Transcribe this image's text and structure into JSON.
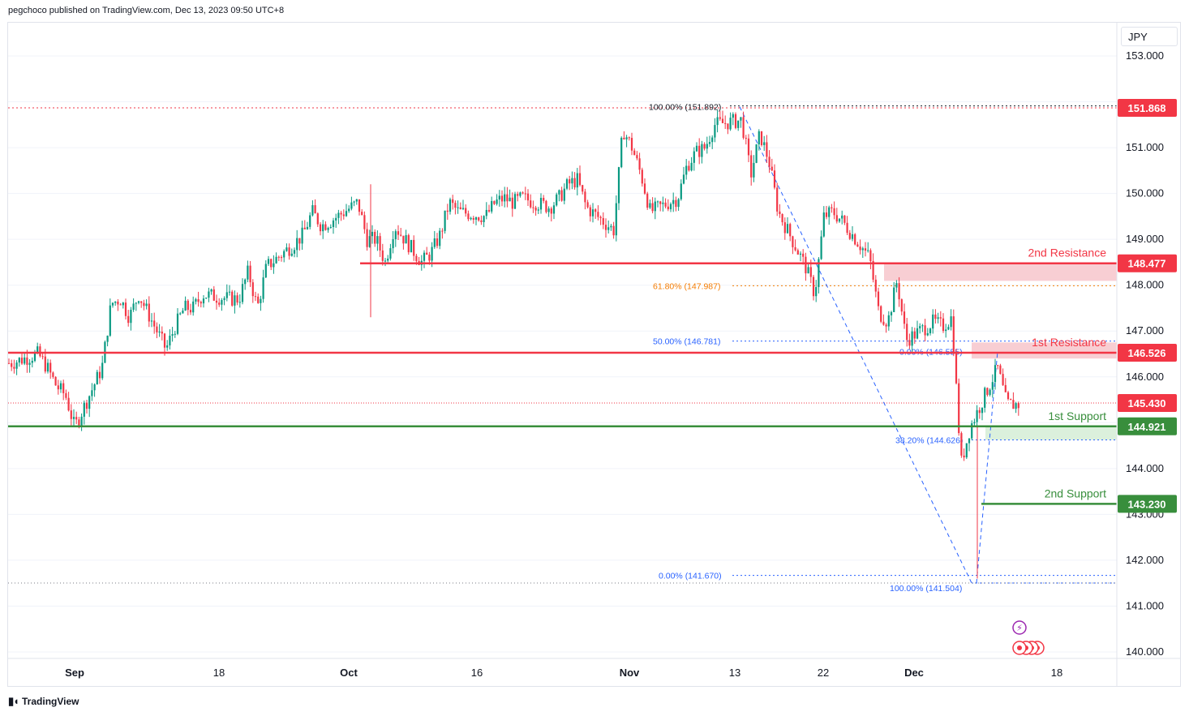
{
  "header": {
    "text": "pegchoco published on TradingView.com, Dec 13, 2023 09:50 UTC+8"
  },
  "footer": {
    "brand": "TradingView",
    "logo_icon": "tradingview-logo-icon"
  },
  "price_axis": {
    "currency": "JPY"
  },
  "colors": {
    "up": "#089981",
    "down": "#f23645",
    "resistance": "#f23645",
    "support": "#388e3c",
    "fib_blue": "#2962ff",
    "fib_orange": "#f57c00",
    "zone_red": "#f7c5cb",
    "zone_green": "#d7eed8"
  },
  "chart_data": {
    "type": "candlestick",
    "symbol_currency": "JPY",
    "ylim": [
      139.9,
      153.6
    ],
    "y_ticks": [
      140.0,
      141.0,
      142.0,
      143.0,
      144.0,
      145.0,
      146.0,
      147.0,
      148.0,
      149.0,
      150.0,
      151.0,
      152.0,
      153.0
    ],
    "y_tick_labels": [
      "140.000",
      "141.000",
      "142.000",
      "143.000",
      "144.000",
      "",
      "146.000",
      "147.000",
      "148.000",
      "149.000",
      "150.000",
      "151.000",
      "",
      "153.000"
    ],
    "x_ticks": [
      {
        "label": "Sep",
        "bold": true
      },
      {
        "label": "18",
        "bold": false
      },
      {
        "label": "Oct",
        "bold": true
      },
      {
        "label": "16",
        "bold": false
      },
      {
        "label": "Nov",
        "bold": true
      },
      {
        "label": "13",
        "bold": false
      },
      {
        "label": "22",
        "bold": false
      },
      {
        "label": "Dec",
        "bold": true
      },
      {
        "label": "18",
        "bold": false
      }
    ],
    "levels": [
      {
        "name": "2nd Resistance",
        "price": 148.477,
        "label": "148.477",
        "kind": "resistance"
      },
      {
        "name": "1st Resistance",
        "price": 146.526,
        "label": "146.526",
        "kind": "resistance"
      },
      {
        "name": "1st Support",
        "price": 144.921,
        "label": "144.921",
        "kind": "support"
      },
      {
        "name": "2nd Support",
        "price": 143.23,
        "label": "143.230",
        "kind": "support"
      }
    ],
    "price_badges": [
      {
        "price": 151.868,
        "label": "151.868"
      },
      {
        "price": 145.43,
        "label": "145.430"
      }
    ],
    "fib_labels": [
      {
        "text": "100.00% (151.892)",
        "price": 151.892,
        "color": "dark"
      },
      {
        "text": "61.80% (147.987)",
        "price": 147.987,
        "color": "orange"
      },
      {
        "text": "50.00% (146.781)",
        "price": 146.781,
        "color": "blue"
      },
      {
        "text": "0.00% (146.555)",
        "price": 146.555,
        "color": "blue"
      },
      {
        "text": "38.20% (144.626)",
        "price": 144.626,
        "color": "blue"
      },
      {
        "text": "0.00% (141.670)",
        "price": 141.67,
        "color": "blue"
      },
      {
        "text": "100.00% (141.504)",
        "price": 141.504,
        "color": "blue"
      }
    ],
    "price_path": [
      [
        "2023-08-25",
        146.3
      ],
      [
        "2023-08-28",
        146.5
      ],
      [
        "2023-08-29",
        146.2
      ],
      [
        "2023-08-30",
        145.8
      ],
      [
        "2023-08-31",
        145.6
      ],
      [
        "2023-09-01",
        144.9
      ],
      [
        "2023-09-04",
        146.2
      ],
      [
        "2023-09-05",
        147.6
      ],
      [
        "2023-09-06",
        147.7
      ],
      [
        "2023-09-07",
        147.3
      ],
      [
        "2023-09-08",
        147.8
      ],
      [
        "2023-09-11",
        146.6
      ],
      [
        "2023-09-12",
        147.1
      ],
      [
        "2023-09-13",
        147.5
      ],
      [
        "2023-09-14",
        147.5
      ],
      [
        "2023-09-15",
        147.8
      ],
      [
        "2023-09-18",
        147.7
      ],
      [
        "2023-09-19",
        147.7
      ],
      [
        "2023-09-20",
        148.3
      ],
      [
        "2023-09-21",
        147.5
      ],
      [
        "2023-09-22",
        148.4
      ],
      [
        "2023-09-25",
        148.9
      ],
      [
        "2023-09-26",
        149.1
      ],
      [
        "2023-09-27",
        149.6
      ],
      [
        "2023-09-28",
        149.3
      ],
      [
        "2023-09-29",
        149.4
      ],
      [
        "2023-10-02",
        149.8
      ],
      [
        "2023-10-03",
        149.0
      ],
      [
        "2023-10-04",
        149.0
      ],
      [
        "2023-10-05",
        148.5
      ],
      [
        "2023-10-06",
        149.3
      ],
      [
        "2023-10-09",
        148.5
      ],
      [
        "2023-10-10",
        148.7
      ],
      [
        "2023-10-11",
        149.1
      ],
      [
        "2023-10-12",
        149.8
      ],
      [
        "2023-10-13",
        149.6
      ],
      [
        "2023-10-16",
        149.5
      ],
      [
        "2023-10-17",
        149.8
      ],
      [
        "2023-10-18",
        149.9
      ],
      [
        "2023-10-19",
        149.8
      ],
      [
        "2023-10-20",
        149.9
      ],
      [
        "2023-10-23",
        149.7
      ],
      [
        "2023-10-24",
        149.9
      ],
      [
        "2023-10-25",
        150.2
      ],
      [
        "2023-10-26",
        150.3
      ],
      [
        "2023-10-27",
        149.7
      ],
      [
        "2023-10-30",
        149.2
      ],
      [
        "2023-10-31",
        151.4
      ],
      [
        "2023-11-01",
        151.0
      ],
      [
        "2023-11-02",
        150.4
      ],
      [
        "2023-11-03",
        149.6
      ],
      [
        "2023-11-06",
        149.9
      ],
      [
        "2023-11-07",
        150.6
      ],
      [
        "2023-11-08",
        150.9
      ],
      [
        "2023-11-09",
        151.0
      ],
      [
        "2023-11-10",
        151.5
      ],
      [
        "2023-11-13",
        151.6
      ],
      [
        "2023-11-14",
        150.4
      ],
      [
        "2023-11-15",
        151.3
      ],
      [
        "2023-11-16",
        150.7
      ],
      [
        "2023-11-17",
        149.6
      ],
      [
        "2023-11-20",
        148.4
      ],
      [
        "2023-11-21",
        147.8
      ],
      [
        "2023-11-22",
        149.5
      ],
      [
        "2023-11-23",
        149.6
      ],
      [
        "2023-11-24",
        149.4
      ],
      [
        "2023-11-27",
        148.6
      ],
      [
        "2023-11-28",
        147.4
      ],
      [
        "2023-11-29",
        147.2
      ],
      [
        "2023-11-30",
        148.1
      ],
      [
        "2023-12-01",
        146.8
      ],
      [
        "2023-12-04",
        147.2
      ],
      [
        "2023-12-05",
        147.1
      ],
      [
        "2023-12-06",
        147.3
      ],
      [
        "2023-12-07",
        144.1
      ],
      [
        "2023-12-08",
        144.9
      ],
      [
        "2023-12-11",
        146.2
      ],
      [
        "2023-12-12",
        145.4
      ]
    ]
  }
}
